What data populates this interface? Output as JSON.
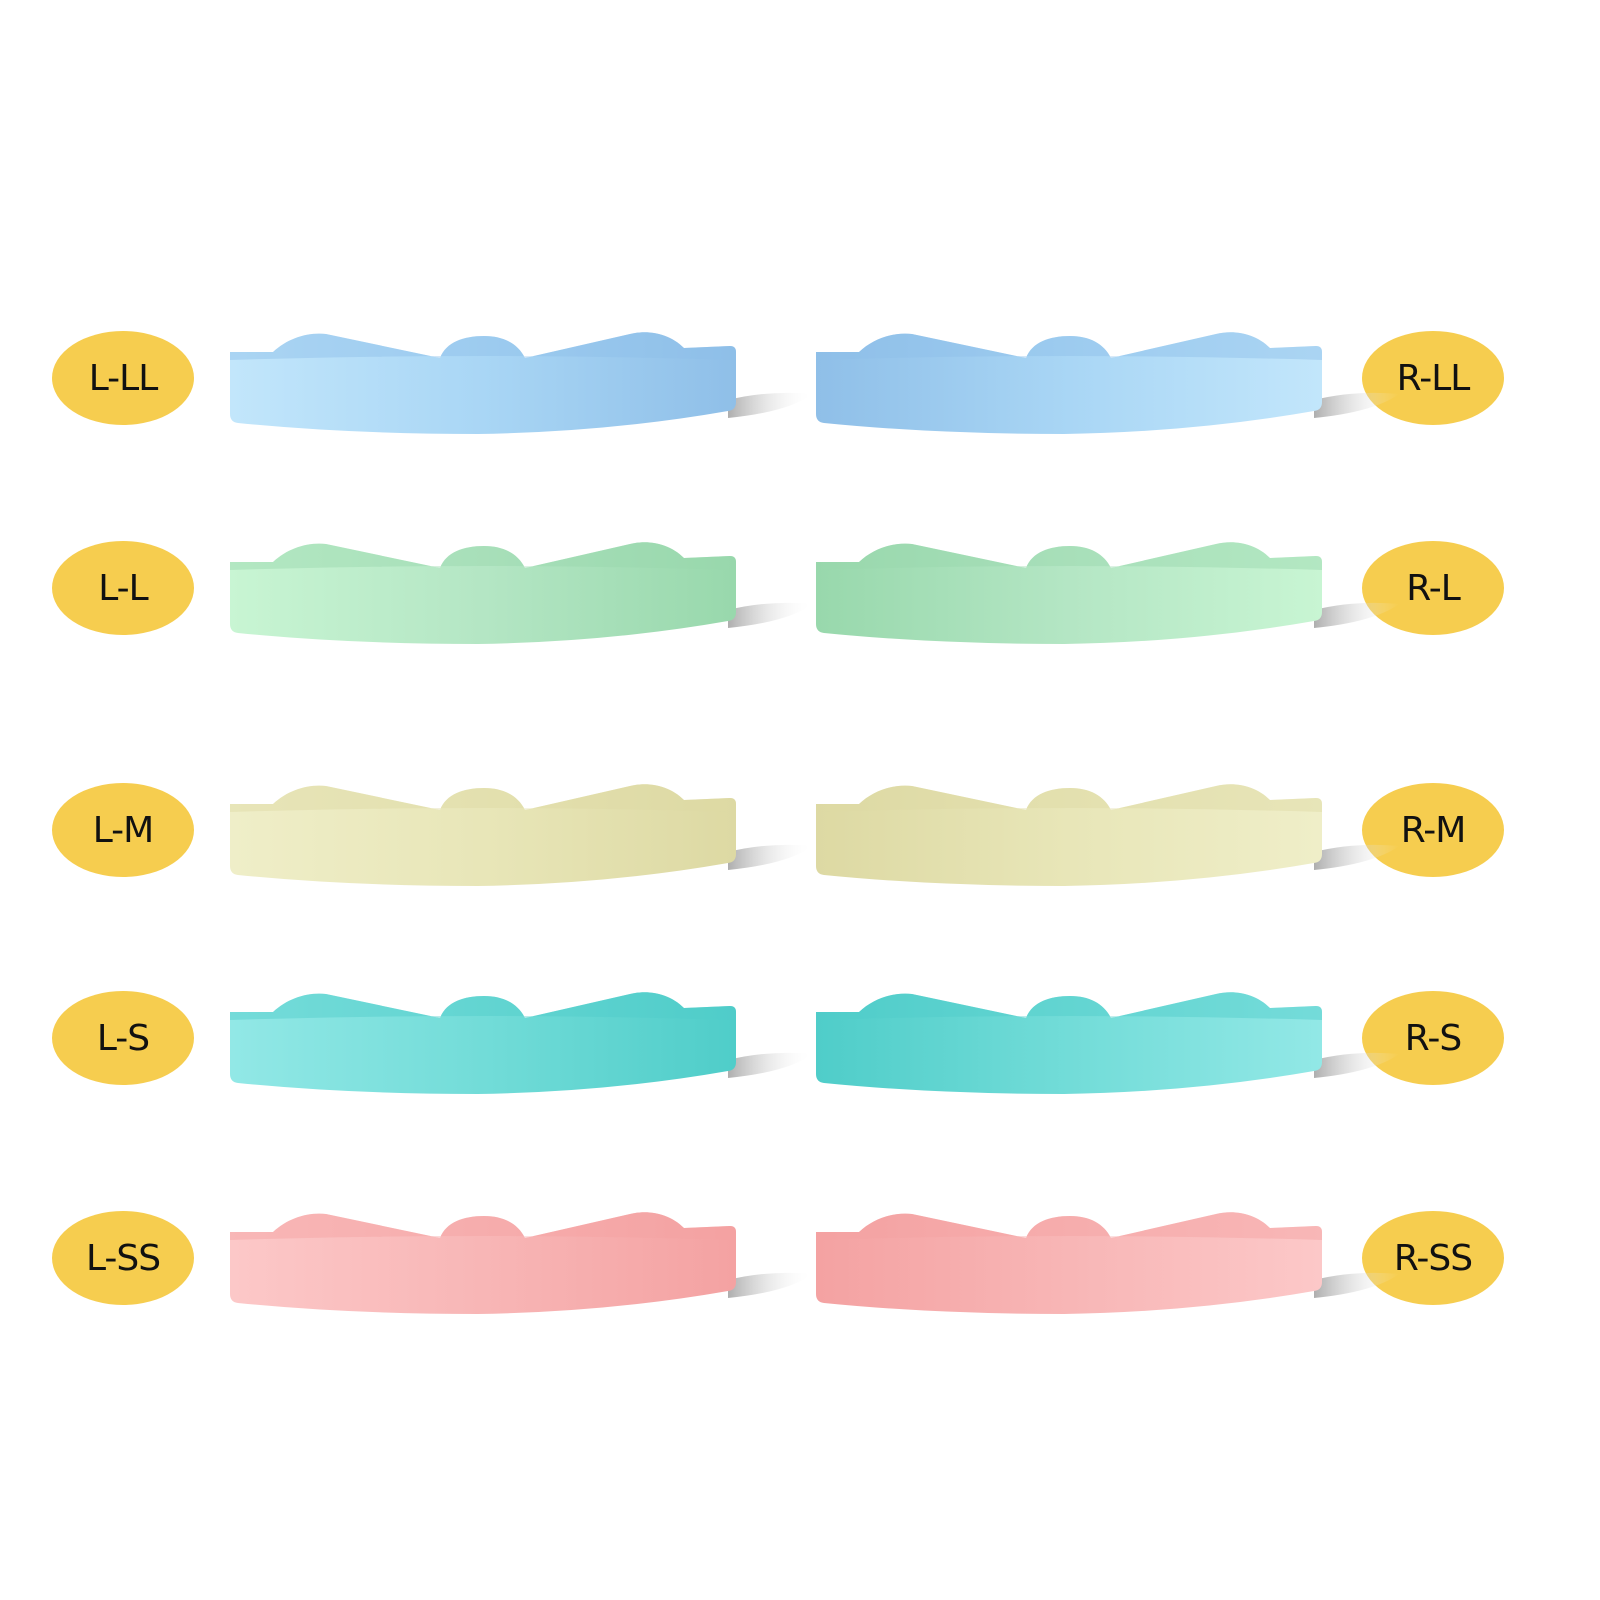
{
  "rows": [
    {
      "left_label": "L-LL",
      "right_label": "R-LL",
      "color": "#a9d6f5",
      "shade": "#8fbfe8",
      "light": "#c2e6fb"
    },
    {
      "left_label": "L-L",
      "right_label": "R-L",
      "color": "#b4e6c4",
      "shade": "#98d8ac",
      "light": "#c8f5d3"
    },
    {
      "left_label": "L-M",
      "right_label": "R-M",
      "color": "#e8e6b8",
      "shade": "#ddd9a3",
      "light": "#efeec8"
    },
    {
      "left_label": "L-S",
      "right_label": "R-S",
      "color": "#72dcd8",
      "shade": "#4fcdc9",
      "light": "#92e8e6"
    },
    {
      "left_label": "L-SS",
      "right_label": "R-SS",
      "color": "#f8b6b6",
      "shade": "#f4a2a2",
      "light": "#fcc8c8"
    }
  ],
  "label_color": "#f6cd4f"
}
